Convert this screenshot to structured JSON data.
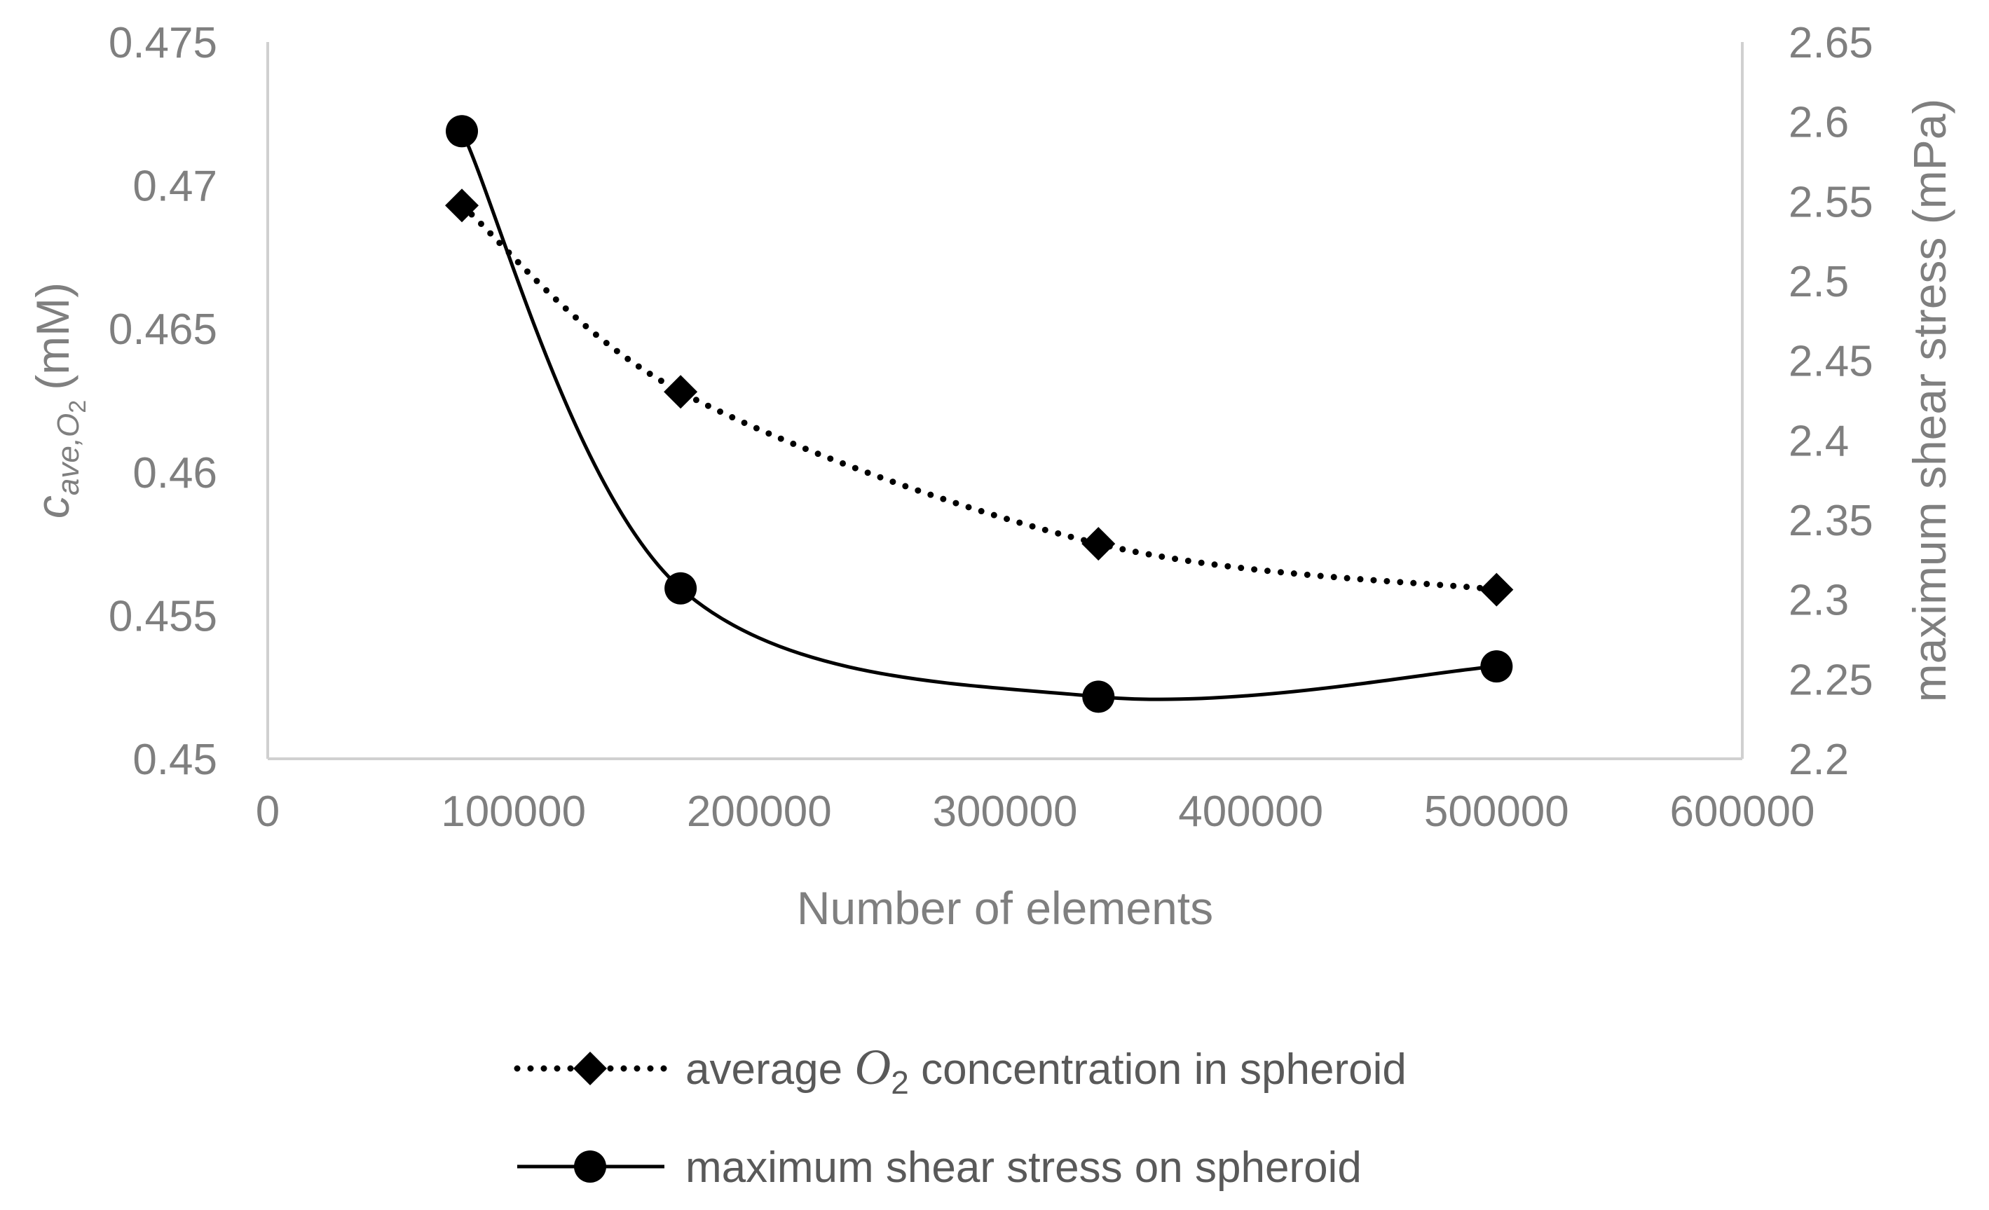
{
  "chart_data": {
    "type": "line",
    "xlabel": "Number of elements",
    "ylabel": {
      "base": "c",
      "sub": "ave,O",
      "sub2": "2",
      "units": "(mM)"
    },
    "y2label": "maximum shear stress (mPa)",
    "xlim": [
      0,
      600000
    ],
    "ylim": [
      0.45,
      0.475
    ],
    "y2lim": [
      2.2,
      2.65
    ],
    "x_ticks": [
      "0",
      "100000",
      "200000",
      "300000",
      "400000",
      "500000",
      "600000"
    ],
    "y_ticks": [
      "0.45",
      "0.455",
      "0.46",
      "0.465",
      "0.47",
      "0.475"
    ],
    "y2_ticks": [
      "2.2",
      "2.25",
      "2.3",
      "2.35",
      "2.4",
      "2.45",
      "2.5",
      "2.55",
      "2.6",
      "2.65"
    ],
    "grid": false,
    "legend_position": "bottom",
    "series": [
      {
        "name": "average O2 concentration in spheroid",
        "legend_prefix": "average ",
        "legend_italic": "O",
        "legend_sub": "2",
        "legend_suffix": " concentration in spheroid",
        "axis": "left",
        "style": "dotted",
        "marker": "diamond",
        "color": "#000000",
        "x": [
          79000,
          168000,
          338000,
          500000
        ],
        "y": [
          0.4693,
          0.4628,
          0.4575,
          0.4559
        ]
      },
      {
        "name": "maximum shear stress on spheroid",
        "axis": "right",
        "style": "solid",
        "marker": "circle",
        "color": "#000000",
        "x": [
          79000,
          168000,
          338000,
          500000
        ],
        "y": [
          2.594,
          2.307,
          2.239,
          2.258
        ]
      }
    ]
  }
}
